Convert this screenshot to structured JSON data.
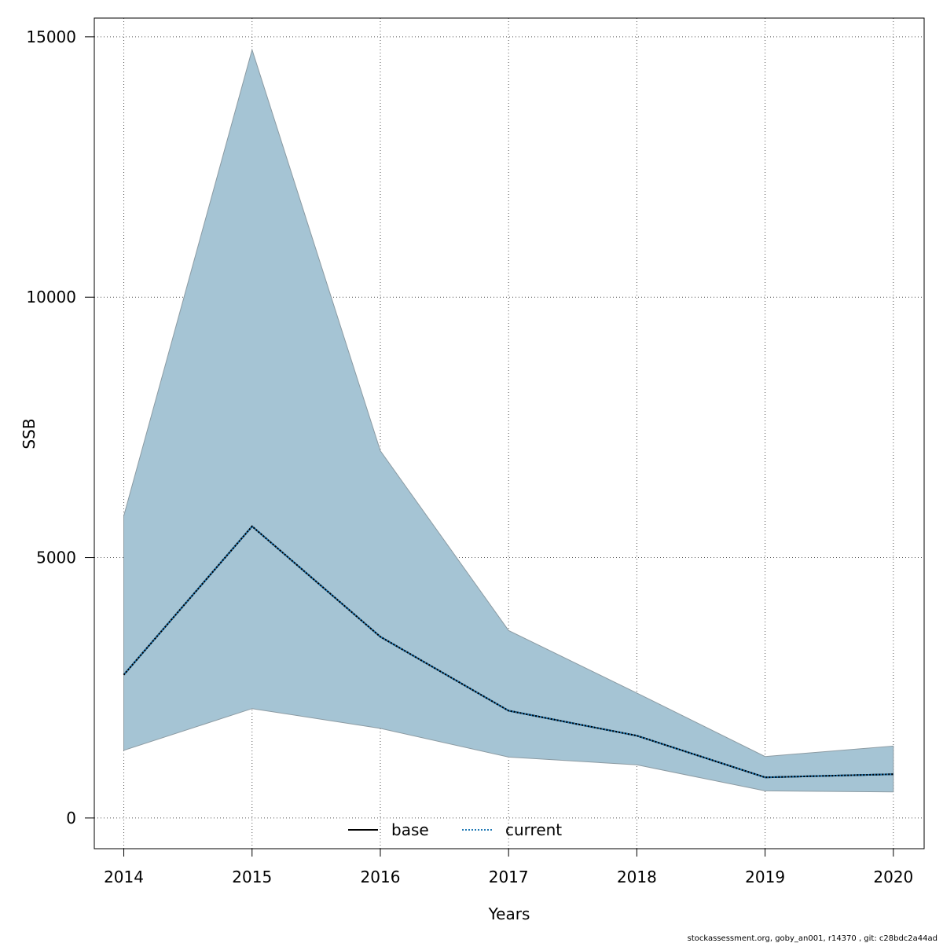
{
  "chart_data": {
    "type": "line",
    "xlabel": "Years",
    "ylabel": "SSB",
    "xlim": [
      2013.77,
      2020.24
    ],
    "ylim": [
      -590,
      15360
    ],
    "x_ticks": [
      2014,
      2015,
      2016,
      2017,
      2018,
      2019,
      2020
    ],
    "y_ticks": [
      0,
      5000,
      10000,
      15000
    ],
    "grid": true,
    "x": [
      2014,
      2015,
      2016,
      2017,
      2018,
      2019,
      2020
    ],
    "band": {
      "color": "#A5C4D4",
      "edge_color": "#8C9BA3",
      "upper": [
        5800,
        14750,
        7050,
        3600,
        2400,
        1180,
        1380
      ],
      "lower": [
        1300,
        2100,
        1720,
        1170,
        1020,
        520,
        500
      ]
    },
    "series": [
      {
        "name": "base",
        "style": "solid",
        "color": "#000000",
        "values": [
          2750,
          5600,
          3480,
          2060,
          1580,
          780,
          840
        ]
      },
      {
        "name": "current",
        "style": "dotted",
        "color": "#000000",
        "accent": "#1F78B4",
        "values": [
          2750,
          5600,
          3480,
          2060,
          1580,
          780,
          840
        ]
      }
    ],
    "legend": {
      "placement": "bottom-center",
      "entries": [
        "base",
        "current"
      ]
    },
    "footnote": "stockassessment.org, goby_an001, r14370 , git: c28bdc2a44ad"
  }
}
